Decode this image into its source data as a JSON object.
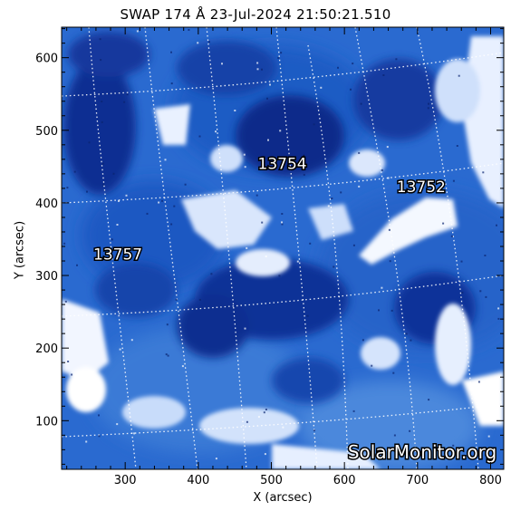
{
  "title": "SWAP 174 Å 23-Jul-2024 21:50:21.510",
  "axes": {
    "xlabel": "X (arcsec)",
    "ylabel": "Y (arcsec)",
    "xlim": [
      213,
      818
    ],
    "ylim": [
      33,
      642
    ],
    "xticks": [
      300,
      400,
      500,
      600,
      700,
      800
    ],
    "yticks": [
      100,
      200,
      300,
      400,
      500,
      600
    ]
  },
  "regions": [
    {
      "label": "13754",
      "x": 515,
      "y": 447
    },
    {
      "label": "13752",
      "x": 705,
      "y": 415
    },
    {
      "label": "13757",
      "x": 290,
      "y": 322
    }
  ],
  "watermark": "SolarMonitor.org",
  "colors": {
    "background": "#1554c2",
    "dark_region": "#0b2a8a",
    "bright_region": "#ffffff",
    "grid": "#ffffff"
  }
}
